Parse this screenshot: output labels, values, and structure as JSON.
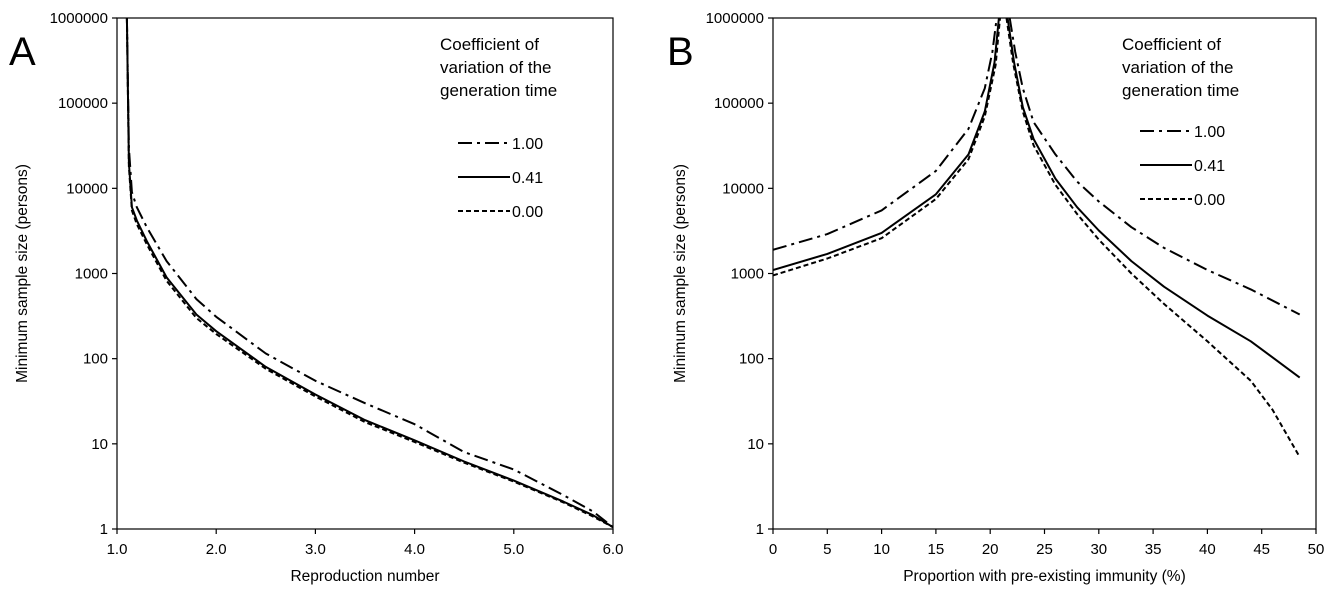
{
  "chart_data": [
    {
      "type": "line",
      "panel_label": "A",
      "xlabel": "Reproduction number",
      "ylabel": "Minimum sample size (persons)",
      "xlim": [
        1.0,
        6.0
      ],
      "ylim": [
        1,
        1000000
      ],
      "yscale": "log",
      "grid": false,
      "xticks": [
        1.0,
        2.0,
        3.0,
        4.0,
        5.0,
        6.0
      ],
      "xtick_labels": [
        "1.0",
        "2.0",
        "3.0",
        "4.0",
        "5.0",
        "6.0"
      ],
      "yticks": [
        1,
        10,
        100,
        1000,
        10000,
        100000,
        1000000
      ],
      "ytick_labels": [
        "1",
        "10",
        "100",
        "1000",
        "10000",
        "100000",
        "1000000"
      ],
      "legend": {
        "title": [
          "Coefficient of",
          "variation of the",
          "generation time"
        ],
        "placement": "top-right"
      },
      "series": [
        {
          "name": "1.00",
          "style": "dashdot",
          "x": [
            1.1,
            1.12,
            1.15,
            1.2,
            1.3,
            1.5,
            1.8,
            2.0,
            2.5,
            3.0,
            3.5,
            4.0,
            4.5,
            5.0,
            5.5,
            5.8,
            6.0
          ],
          "y": [
            1000000,
            30000,
            9000,
            6000,
            3500,
            1400,
            500,
            310,
            115,
            55,
            30,
            17,
            8,
            5,
            2.5,
            1.6,
            1.05
          ]
        },
        {
          "name": "0.41",
          "style": "solid",
          "x": [
            1.1,
            1.12,
            1.15,
            1.2,
            1.3,
            1.5,
            1.8,
            2.0,
            2.5,
            3.0,
            3.5,
            4.0,
            4.5,
            5.0,
            5.5,
            5.8,
            6.0
          ],
          "y": [
            1000000,
            20000,
            6000,
            4200,
            2400,
            900,
            330,
            210,
            80,
            38,
            19,
            11,
            6.2,
            3.7,
            2.1,
            1.45,
            1.05
          ]
        },
        {
          "name": "0.00",
          "style": "dashed",
          "x": [
            1.1,
            1.12,
            1.15,
            1.2,
            1.3,
            1.5,
            1.8,
            2.0,
            2.5,
            3.0,
            3.5,
            4.0,
            4.5,
            5.0,
            5.5,
            5.8,
            6.0
          ],
          "y": [
            1000000,
            18000,
            5500,
            3800,
            2200,
            820,
            300,
            195,
            76,
            36,
            18,
            10.5,
            6,
            3.6,
            2.05,
            1.4,
            1.05
          ]
        }
      ]
    },
    {
      "type": "line",
      "panel_label": "B",
      "xlabel": "Proportion with pre-existing immunity (%)",
      "ylabel": "Minimum sample size (persons)",
      "xlim": [
        0,
        50
      ],
      "ylim": [
        1,
        1000000
      ],
      "yscale": "log",
      "grid": false,
      "xticks": [
        0,
        5,
        10,
        15,
        20,
        25,
        30,
        35,
        40,
        45,
        50
      ],
      "xtick_labels": [
        "0",
        "5",
        "10",
        "15",
        "20",
        "25",
        "30",
        "35",
        "40",
        "45",
        "50"
      ],
      "yticks": [
        1,
        10,
        100,
        1000,
        10000,
        100000,
        1000000
      ],
      "ytick_labels": [
        "1",
        "10",
        "100",
        "1000",
        "10000",
        "100000",
        "1000000"
      ],
      "legend": {
        "title": [
          "Coefficient of",
          "variation of the",
          "generation time"
        ],
        "placement": "top-right"
      },
      "series": [
        {
          "name": "1.00",
          "style": "dashdot",
          "segments": [
            {
              "x": [
                0,
                5,
                10,
                15,
                18,
                19.5,
                20.2,
                20.6
              ],
              "y": [
                1900,
                2900,
                5500,
                16000,
                50000,
                150000,
                400000,
                1000000
              ]
            },
            {
              "x": [
                21.8,
                22.3,
                23,
                24,
                26,
                28,
                30,
                33,
                36,
                40,
                44,
                48.5
              ],
              "y": [
                1000000,
                400000,
                150000,
                60000,
                25000,
                12000,
                7000,
                3500,
                2000,
                1100,
                650,
                330
              ]
            }
          ]
        },
        {
          "name": "0.41",
          "style": "solid",
          "segments": [
            {
              "x": [
                0,
                5,
                10,
                15,
                18,
                19.5,
                20.4,
                20.8
              ],
              "y": [
                1100,
                1700,
                3000,
                8500,
                25000,
                80000,
                300000,
                1000000
              ]
            },
            {
              "x": [
                21.6,
                22.2,
                23,
                24,
                26,
                28,
                30,
                33,
                36,
                40,
                44,
                48.5
              ],
              "y": [
                1000000,
                300000,
                90000,
                38000,
                13000,
                6000,
                3200,
                1400,
                700,
                320,
                160,
                60
              ]
            }
          ]
        },
        {
          "name": "0.00",
          "style": "dashed",
          "segments": [
            {
              "x": [
                0,
                5,
                10,
                15,
                18,
                19.5,
                20.5,
                20.9
              ],
              "y": [
                950,
                1500,
                2600,
                7500,
                22000,
                70000,
                280000,
                1000000
              ]
            },
            {
              "x": [
                21.5,
                22.1,
                23,
                24,
                26,
                28,
                30,
                33,
                36,
                40,
                44,
                46,
                48.5
              ],
              "y": [
                1000000,
                300000,
                80000,
                32000,
                11000,
                5000,
                2500,
                1000,
                440,
                160,
                55,
                25,
                7
              ]
            }
          ]
        }
      ]
    }
  ]
}
